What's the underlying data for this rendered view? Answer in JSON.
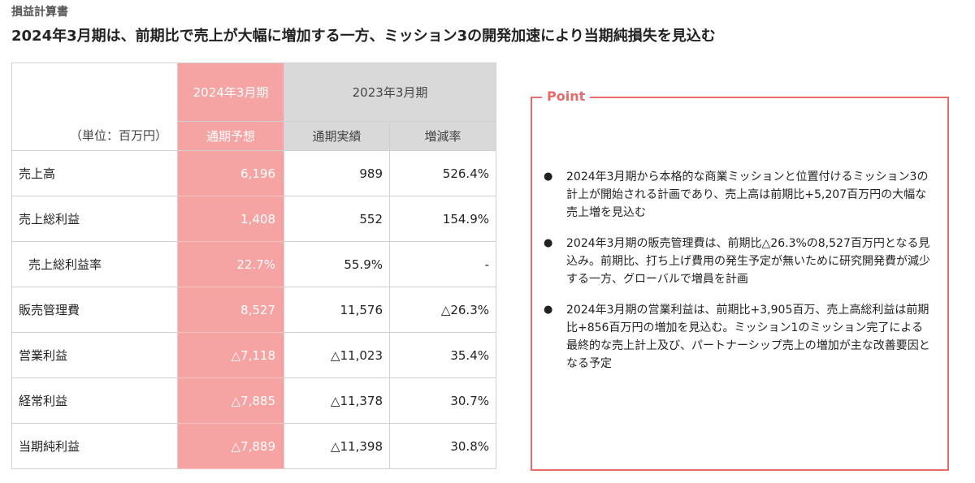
{
  "header": {
    "section": "損益計算書",
    "headline": "2024年3月期は、前期比で売上が大幅に増加する一方、ミッション3の開発加速により当期純損失を見込む"
  },
  "table": {
    "unit": "（単位：百万円）",
    "forecast_year": "2024年3月期",
    "forecast_label": "通期予想",
    "prev_year": "2023年3月期",
    "prev_actual_label": "通期実績",
    "change_label": "増減率",
    "rows": [
      {
        "label": "売上高",
        "forecast": "6,196",
        "actual": "989",
        "change": "526.4%"
      },
      {
        "label": "売上総利益",
        "forecast": "1,408",
        "actual": "552",
        "change": "154.9%"
      },
      {
        "label": "売上総利益率",
        "forecast": "22.7%",
        "actual": "55.9%",
        "change": "-"
      },
      {
        "label": "販売管理費",
        "forecast": "8,527",
        "actual": "11,576",
        "change": "△26.3%"
      },
      {
        "label": "営業利益",
        "forecast": "△7,118",
        "actual": "△11,023",
        "change": "35.4%"
      },
      {
        "label": "経常利益",
        "forecast": "△7,885",
        "actual": "△11,378",
        "change": "30.7%"
      },
      {
        "label": "当期純利益",
        "forecast": "△7,889",
        "actual": "△11,398",
        "change": "30.8%"
      }
    ]
  },
  "point": {
    "title": "Point",
    "bullet_symbol": "●",
    "bullets": [
      "2024年3月期から本格的な商業ミッションと位置付けるミッション3の計上が開始される計画であり、売上高は前期比+5,207百万円の大幅な売上増を見込む",
      "2024年3月期の販売管理費は、前期比△26.3%の8,527百万円となる見込み。前期比、打ち上げ費用の発生予定が無いために研究開発費が減少する一方、グローバルで増員を計画",
      "2024年3月期の営業利益は、前期比+3,905百万、売上高総利益は前期比+856百万円の増加を見込む。ミッション1のミッション完了による最終的な売上計上及び、パートナーシップ売上の増加が主な改善要因となる予定"
    ]
  },
  "colors": {
    "forecast_fill": "#f5a3a3",
    "prev_fill": "#d9d9d9",
    "point_border": "#e86a6a"
  }
}
